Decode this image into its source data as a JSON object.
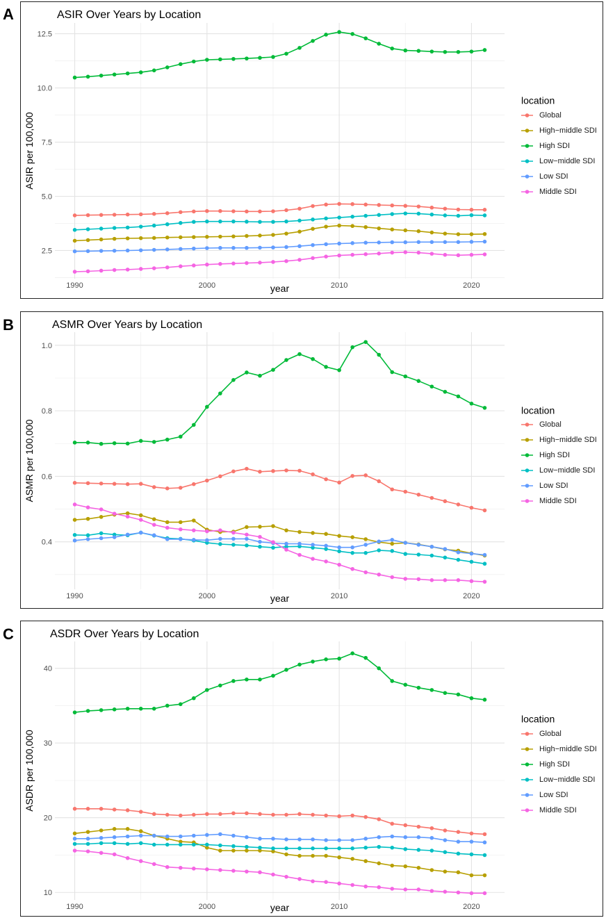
{
  "figure": {
    "panels": [
      {
        "letter": "A"
      },
      {
        "letter": "B"
      },
      {
        "letter": "C"
      }
    ]
  },
  "chart_data": [
    {
      "type": "line",
      "title": "ASIR Over Years by Location",
      "xlabel": "year",
      "ylabel": "ASIR per 100,000",
      "xlim": [
        1988.5,
        2022.5
      ],
      "ylim": [
        1.2,
        13.0
      ],
      "xticks": [
        1990,
        2000,
        2010,
        2020
      ],
      "yticks": [
        2.5,
        5.0,
        7.5,
        10.0,
        12.5
      ],
      "ytick_labels": [
        "2.5",
        "5.0",
        "7.5",
        "10.0",
        "12.5"
      ],
      "legend_title": "location",
      "legend_position": "right",
      "x": [
        1990,
        1991,
        1992,
        1993,
        1994,
        1995,
        1996,
        1997,
        1998,
        1999,
        2000,
        2001,
        2002,
        2003,
        2004,
        2005,
        2006,
        2007,
        2008,
        2009,
        2010,
        2011,
        2012,
        2013,
        2014,
        2015,
        2016,
        2017,
        2018,
        2019,
        2020,
        2021
      ],
      "series": [
        {
          "name": "Global",
          "color": "#F8766D",
          "values": [
            4.12,
            4.13,
            4.14,
            4.15,
            4.16,
            4.17,
            4.19,
            4.22,
            4.27,
            4.3,
            4.32,
            4.32,
            4.31,
            4.3,
            4.3,
            4.31,
            4.36,
            4.43,
            4.55,
            4.62,
            4.65,
            4.64,
            4.62,
            4.6,
            4.58,
            4.56,
            4.53,
            4.48,
            4.43,
            4.39,
            4.38,
            4.38
          ]
        },
        {
          "name": "High−middle SDI",
          "color": "#B79F00",
          "values": [
            2.95,
            2.98,
            3.01,
            3.04,
            3.06,
            3.07,
            3.08,
            3.1,
            3.11,
            3.12,
            3.13,
            3.14,
            3.15,
            3.17,
            3.19,
            3.22,
            3.28,
            3.37,
            3.5,
            3.6,
            3.65,
            3.63,
            3.58,
            3.52,
            3.47,
            3.43,
            3.39,
            3.33,
            3.28,
            3.25,
            3.25,
            3.26
          ]
        },
        {
          "name": "High SDI",
          "color": "#00BA38",
          "values": [
            10.48,
            10.52,
            10.57,
            10.62,
            10.67,
            10.72,
            10.81,
            10.95,
            11.1,
            11.22,
            11.3,
            11.32,
            11.34,
            11.36,
            11.39,
            11.43,
            11.58,
            11.85,
            12.17,
            12.46,
            12.58,
            12.49,
            12.29,
            12.04,
            11.82,
            11.73,
            11.71,
            11.68,
            11.66,
            11.66,
            11.68,
            11.75
          ]
        },
        {
          "name": "Low−middle SDI",
          "color": "#00BFC4",
          "values": [
            3.45,
            3.48,
            3.51,
            3.54,
            3.56,
            3.6,
            3.65,
            3.71,
            3.77,
            3.82,
            3.84,
            3.84,
            3.84,
            3.83,
            3.82,
            3.82,
            3.84,
            3.88,
            3.93,
            3.98,
            4.02,
            4.06,
            4.1,
            4.14,
            4.18,
            4.21,
            4.2,
            4.16,
            4.12,
            4.1,
            4.13,
            4.12
          ]
        },
        {
          "name": "Low SDI",
          "color": "#619CFF",
          "values": [
            2.46,
            2.47,
            2.48,
            2.49,
            2.5,
            2.51,
            2.53,
            2.55,
            2.57,
            2.59,
            2.61,
            2.62,
            2.62,
            2.62,
            2.63,
            2.64,
            2.66,
            2.7,
            2.75,
            2.79,
            2.82,
            2.84,
            2.86,
            2.87,
            2.88,
            2.88,
            2.89,
            2.89,
            2.89,
            2.89,
            2.9,
            2.91
          ]
        },
        {
          "name": "Middle SDI",
          "color": "#F564E3",
          "values": [
            1.52,
            1.54,
            1.57,
            1.6,
            1.62,
            1.65,
            1.68,
            1.72,
            1.77,
            1.81,
            1.85,
            1.88,
            1.9,
            1.92,
            1.94,
            1.97,
            2.01,
            2.07,
            2.15,
            2.22,
            2.27,
            2.3,
            2.33,
            2.36,
            2.4,
            2.42,
            2.4,
            2.35,
            2.3,
            2.28,
            2.3,
            2.32
          ]
        }
      ]
    },
    {
      "type": "line",
      "title": "ASMR Over Years by Location",
      "xlabel": "year",
      "ylabel": "ASMR per 100,000",
      "xlim": [
        1988.5,
        2022.5
      ],
      "ylim": [
        0.255,
        1.04
      ],
      "xticks": [
        1990,
        2000,
        2010,
        2020
      ],
      "yticks": [
        0.4,
        0.6,
        0.8,
        1.0
      ],
      "ytick_labels": [
        "0.4",
        "0.6",
        "0.8",
        "1.0"
      ],
      "legend_title": "location",
      "legend_position": "right",
      "x": [
        1990,
        1991,
        1992,
        1993,
        1994,
        1995,
        1996,
        1997,
        1998,
        1999,
        2000,
        2001,
        2002,
        2003,
        2004,
        2005,
        2006,
        2007,
        2008,
        2009,
        2010,
        2011,
        2012,
        2013,
        2014,
        2015,
        2016,
        2017,
        2018,
        2019,
        2020,
        2021
      ],
      "series": [
        {
          "name": "Global",
          "color": "#F8766D",
          "values": [
            0.58,
            0.579,
            0.578,
            0.577,
            0.576,
            0.577,
            0.567,
            0.563,
            0.565,
            0.576,
            0.587,
            0.6,
            0.615,
            0.623,
            0.614,
            0.616,
            0.618,
            0.617,
            0.606,
            0.591,
            0.581,
            0.601,
            0.603,
            0.585,
            0.56,
            0.553,
            0.544,
            0.534,
            0.524,
            0.514,
            0.504,
            0.496
          ]
        },
        {
          "name": "High−middle SDI",
          "color": "#B79F00",
          "values": [
            0.467,
            0.47,
            0.476,
            0.483,
            0.487,
            0.481,
            0.469,
            0.46,
            0.46,
            0.465,
            0.437,
            0.43,
            0.431,
            0.445,
            0.446,
            0.448,
            0.435,
            0.43,
            0.427,
            0.424,
            0.418,
            0.414,
            0.408,
            0.399,
            0.394,
            0.397,
            0.392,
            0.385,
            0.377,
            0.373,
            0.365,
            0.358
          ]
        },
        {
          "name": "High SDI",
          "color": "#00BA38",
          "values": [
            0.703,
            0.703,
            0.699,
            0.701,
            0.7,
            0.708,
            0.705,
            0.712,
            0.721,
            0.757,
            0.812,
            0.853,
            0.894,
            0.917,
            0.907,
            0.925,
            0.955,
            0.973,
            0.958,
            0.934,
            0.924,
            0.994,
            1.01,
            0.971,
            0.918,
            0.905,
            0.891,
            0.874,
            0.858,
            0.844,
            0.822,
            0.809
          ]
        },
        {
          "name": "Low−middle SDI",
          "color": "#00BFC4",
          "values": [
            0.421,
            0.42,
            0.426,
            0.422,
            0.42,
            0.428,
            0.419,
            0.411,
            0.409,
            0.404,
            0.397,
            0.393,
            0.391,
            0.389,
            0.385,
            0.382,
            0.385,
            0.386,
            0.382,
            0.378,
            0.371,
            0.366,
            0.366,
            0.374,
            0.372,
            0.363,
            0.361,
            0.358,
            0.352,
            0.345,
            0.339,
            0.333
          ]
        },
        {
          "name": "Low SDI",
          "color": "#619CFF",
          "values": [
            0.404,
            0.408,
            0.411,
            0.414,
            0.422,
            0.428,
            0.42,
            0.408,
            0.408,
            0.406,
            0.405,
            0.409,
            0.409,
            0.409,
            0.4,
            0.396,
            0.394,
            0.394,
            0.391,
            0.388,
            0.383,
            0.383,
            0.391,
            0.401,
            0.406,
            0.397,
            0.391,
            0.385,
            0.378,
            0.368,
            0.364,
            0.36
          ]
        },
        {
          "name": "Middle SDI",
          "color": "#F564E3",
          "values": [
            0.514,
            0.505,
            0.499,
            0.486,
            0.477,
            0.467,
            0.452,
            0.443,
            0.438,
            0.435,
            0.432,
            0.435,
            0.428,
            0.422,
            0.415,
            0.399,
            0.376,
            0.36,
            0.348,
            0.34,
            0.33,
            0.317,
            0.307,
            0.3,
            0.292,
            0.287,
            0.286,
            0.283,
            0.283,
            0.283,
            0.28,
            0.278
          ]
        }
      ]
    },
    {
      "type": "line",
      "title": "ASDR Over Years by Location",
      "xlabel": "year",
      "ylabel": "ASDR per 100,000",
      "xlim": [
        1988.5,
        2022.5
      ],
      "ylim": [
        9.0,
        43.6
      ],
      "xticks": [
        1990,
        2000,
        2010,
        2020
      ],
      "yticks": [
        10,
        20,
        30,
        40
      ],
      "ytick_labels": [
        "10",
        "20",
        "30",
        "40"
      ],
      "legend_title": "location",
      "legend_position": "right",
      "x": [
        1990,
        1991,
        1992,
        1993,
        1994,
        1995,
        1996,
        1997,
        1998,
        1999,
        2000,
        2001,
        2002,
        2003,
        2004,
        2005,
        2006,
        2007,
        2008,
        2009,
        2010,
        2011,
        2012,
        2013,
        2014,
        2015,
        2016,
        2017,
        2018,
        2019,
        2020,
        2021
      ],
      "series": [
        {
          "name": "Global",
          "color": "#F8766D",
          "values": [
            21.2,
            21.2,
            21.2,
            21.1,
            21.0,
            20.8,
            20.5,
            20.4,
            20.3,
            20.4,
            20.5,
            20.5,
            20.6,
            20.6,
            20.5,
            20.4,
            20.4,
            20.5,
            20.4,
            20.3,
            20.2,
            20.3,
            20.1,
            19.8,
            19.2,
            19.0,
            18.8,
            18.6,
            18.3,
            18.1,
            17.9,
            17.8
          ]
        },
        {
          "name": "High−middle SDI",
          "color": "#B79F00",
          "values": [
            17.9,
            18.1,
            18.3,
            18.5,
            18.5,
            18.2,
            17.6,
            17.2,
            16.8,
            16.7,
            16.0,
            15.6,
            15.6,
            15.6,
            15.6,
            15.5,
            15.1,
            14.9,
            14.9,
            14.9,
            14.7,
            14.5,
            14.2,
            13.9,
            13.6,
            13.5,
            13.3,
            13.0,
            12.8,
            12.7,
            12.3,
            12.3
          ]
        },
        {
          "name": "High SDI",
          "color": "#00BA38",
          "values": [
            34.1,
            34.3,
            34.4,
            34.5,
            34.6,
            34.6,
            34.6,
            35.0,
            35.2,
            36.0,
            37.1,
            37.7,
            38.3,
            38.5,
            38.5,
            39.0,
            39.8,
            40.5,
            40.9,
            41.2,
            41.3,
            42.0,
            41.4,
            40.0,
            38.3,
            37.8,
            37.4,
            37.1,
            36.7,
            36.5,
            36.0,
            35.8
          ]
        },
        {
          "name": "Low−middle SDI",
          "color": "#00BFC4",
          "values": [
            16.5,
            16.5,
            16.6,
            16.6,
            16.5,
            16.6,
            16.4,
            16.4,
            16.4,
            16.4,
            16.4,
            16.3,
            16.2,
            16.1,
            16.0,
            15.9,
            15.9,
            15.9,
            15.9,
            15.9,
            15.9,
            15.9,
            16.0,
            16.1,
            16.0,
            15.8,
            15.7,
            15.6,
            15.4,
            15.2,
            15.1,
            15.0
          ]
        },
        {
          "name": "Low SDI",
          "color": "#619CFF",
          "values": [
            17.2,
            17.2,
            17.3,
            17.4,
            17.5,
            17.6,
            17.6,
            17.5,
            17.5,
            17.6,
            17.7,
            17.8,
            17.6,
            17.4,
            17.2,
            17.2,
            17.1,
            17.1,
            17.1,
            17.0,
            17.0,
            17.0,
            17.2,
            17.4,
            17.5,
            17.4,
            17.4,
            17.3,
            17.0,
            16.8,
            16.8,
            16.7
          ]
        },
        {
          "name": "Middle SDI",
          "color": "#F564E3",
          "values": [
            15.6,
            15.5,
            15.3,
            15.1,
            14.6,
            14.2,
            13.8,
            13.4,
            13.3,
            13.2,
            13.1,
            13.0,
            12.9,
            12.8,
            12.7,
            12.4,
            12.1,
            11.8,
            11.5,
            11.4,
            11.2,
            11.0,
            10.8,
            10.7,
            10.5,
            10.4,
            10.4,
            10.2,
            10.1,
            10.0,
            9.9,
            9.9
          ]
        }
      ]
    }
  ]
}
